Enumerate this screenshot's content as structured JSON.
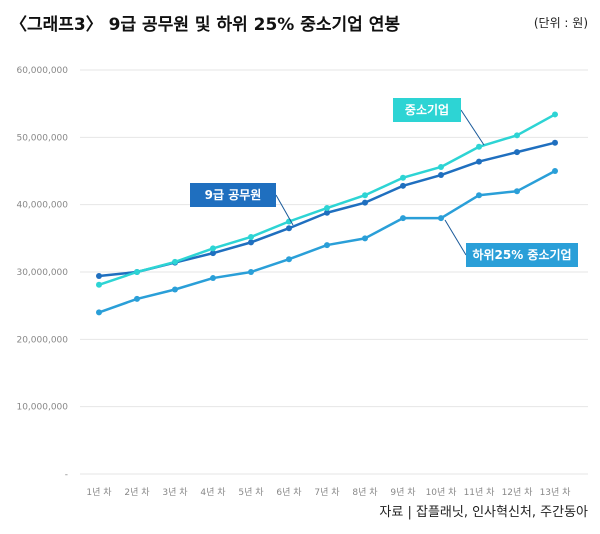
{
  "chart_data": {
    "type": "line",
    "title": "〈그래프3〉 9급 공무원 및 하위 25% 중소기업 연봉",
    "unit_label": "(단위 : 원)",
    "source": "자료 | 잡플래닛, 인사혁신처, 주간동아",
    "categories": [
      "1년 차",
      "2년 차",
      "3년 차",
      "4년 차",
      "5년 차",
      "6년 차",
      "7년 차",
      "8년 차",
      "9년 차",
      "10년 차",
      "11년 차",
      "12년 차",
      "13년 차"
    ],
    "y_ticks": [
      {
        "value": 60000000,
        "label": "60,000,000"
      },
      {
        "value": 50000000,
        "label": "50,000,000"
      },
      {
        "value": 40000000,
        "label": "40,000,000"
      },
      {
        "value": 30000000,
        "label": "30,000,000"
      },
      {
        "value": 20000000,
        "label": "20,000,000"
      },
      {
        "value": 10000000,
        "label": "10,000,000"
      },
      {
        "value": 0,
        "label": "-"
      }
    ],
    "ylim": [
      0,
      60000000
    ],
    "grid": true,
    "series": [
      {
        "name": "9급 공무원",
        "color": "#1f6fbf",
        "values": [
          29400000,
          30000000,
          31400000,
          32800000,
          34400000,
          36500000,
          38800000,
          40300000,
          42800000,
          44400000,
          46400000,
          47800000,
          49200000
        ]
      },
      {
        "name": "중소기업",
        "color": "#2dd4d4",
        "values": [
          28100000,
          30000000,
          31500000,
          33500000,
          35200000,
          37500000,
          39500000,
          41400000,
          44000000,
          45600000,
          48600000,
          50300000,
          53400000
        ]
      },
      {
        "name": "하위25% 중소기업",
        "color": "#2a9fd8",
        "values": [
          24000000,
          26000000,
          27400000,
          29100000,
          30000000,
          31900000,
          34000000,
          35000000,
          38000000,
          38000000,
          41400000,
          42000000,
          45000000
        ]
      }
    ]
  }
}
